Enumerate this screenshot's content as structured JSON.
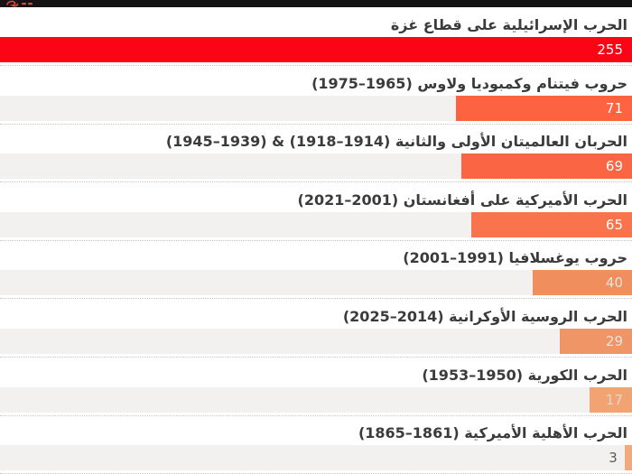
{
  "page": {
    "background": "#ffffff",
    "top_bar_color": "#141414",
    "logo_color": "#d8453a",
    "track_color": "#f2f1ef",
    "separator_color": "#c8c6c3",
    "label_color": "#3b3b3b"
  },
  "chart_data": {
    "type": "bar",
    "orientation": "horizontal",
    "direction": "rtl",
    "title": "",
    "xlabel": "",
    "ylabel": "",
    "max_value": 255,
    "grid": "dotted-row-separators",
    "categories": [
      "الحرب الإسرائيلية على قطاع غزة",
      "حروب فيتنام وكمبوديا ولاوس (1965–1975)",
      "الحربان العالميتان الأولى والثانية (1914–1918) & (1939–1945)",
      "الحرب الأميركية على أفغانستان (2001–2021)",
      "حروب يوغسلافيا (1991–2001)",
      "الحرب الروسية الأوكرانية (2014–2025)",
      "الحرب الكورية (1950–1953)",
      "الحرب الأهلية الأميركية (1861–1865)"
    ],
    "values": [
      255,
      71,
      69,
      65,
      40,
      29,
      17,
      3
    ],
    "rows": [
      {
        "label": "الحرب الإسرائيلية على قطاع غزة",
        "value": "255",
        "ratio": 1.0,
        "bar_color": "#fa0416",
        "value_color": "#ffffff",
        "value_inside": true
      },
      {
        "label": "حروب فيتنام وكمبوديا ولاوس (1965–1975)",
        "value": "71",
        "ratio": 0.2784,
        "bar_color": "#fd6341",
        "value_color": "#ffffff",
        "value_inside": true
      },
      {
        "label": "الحربان العالميتان الأولى والثانية (1914–1918) & (1939–1945)",
        "value": "69",
        "ratio": 0.2706,
        "bar_color": "#fa6643",
        "value_color": "#ffffff",
        "value_inside": true
      },
      {
        "label": "الحرب الأميركية على أفغانستان (2001–2021)",
        "value": "65",
        "ratio": 0.2549,
        "bar_color": "#f9734d",
        "value_color": "#ffffff",
        "value_inside": true
      },
      {
        "label": "حروب يوغسلافيا (1991–2001)",
        "value": "40",
        "ratio": 0.1569,
        "bar_color": "#f08e5e",
        "value_color": "#e6e3dd",
        "value_inside": true
      },
      {
        "label": "الحرب الروسية الأوكرانية (2014–2025)",
        "value": "29",
        "ratio": 0.1137,
        "bar_color": "#ef9566",
        "value_color": "#e6e3dd",
        "value_inside": true
      },
      {
        "label": "الحرب الكورية (1950–1953)",
        "value": "17",
        "ratio": 0.0667,
        "bar_color": "#f3a372",
        "value_color": "#dcd9d3",
        "value_inside": true
      },
      {
        "label": "الحرب الأهلية الأميركية (1861–1865)",
        "value": "3",
        "ratio": 0.0118,
        "bar_color": "#f4a97c",
        "value_color": "#5a5a5a",
        "value_inside": false
      }
    ]
  }
}
